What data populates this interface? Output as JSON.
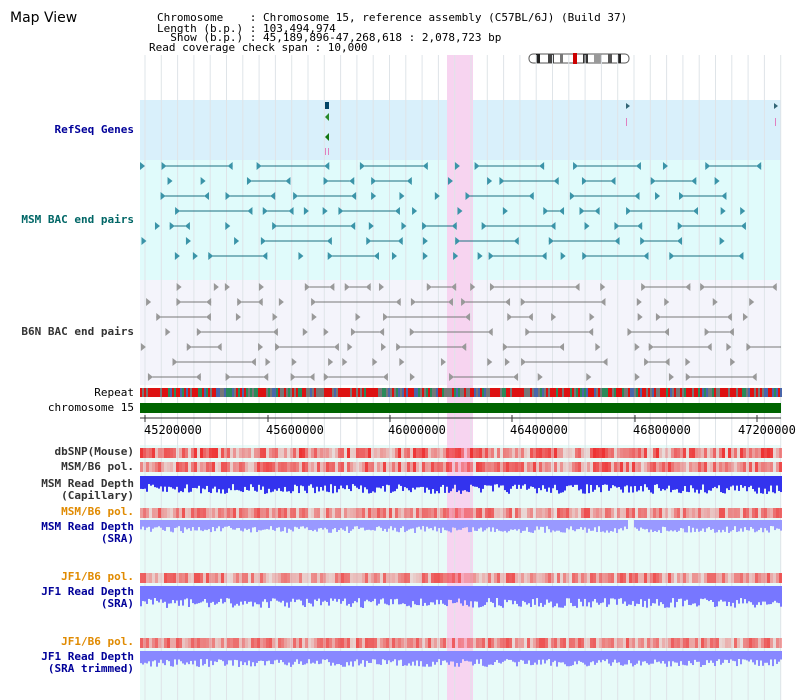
{
  "header": {
    "title": "Map View",
    "info_lines": [
      "Chromosome    : Chromosome 15, reference assembly (C57BL/6J) (Build 37)",
      "Length (b.p.) : 103,494,974",
      "  Show (b.p.) : 45,189,896-47,268,618 : 2,078,723 bp",
      "Read coverage check span : 10,000"
    ]
  },
  "tracks": {
    "refseq": "RefSeq Genes",
    "msm_bac": "MSM BAC end pairs",
    "b6n_bac": "B6N BAC end pairs",
    "repeat": "Repeat",
    "chromosome": "chromosome 15",
    "dbsnp": "dbSNP(Mouse)",
    "msm_b6_pol_1": "MSM/B6 pol.",
    "msm_depth_cap": "MSM Read Depth\n(Capillary)",
    "msm_b6_pol_2": "MSM/B6 pol.",
    "msm_depth_sra": "MSM Read Depth\n(SRA)",
    "jf1_b6_pol_1": "JF1/B6 pol.",
    "jf1_depth_sra": "JF1 Read Depth\n(SRA)",
    "jf1_b6_pol_2": "JF1/B6 pol.",
    "jf1_depth_trim": "JF1 Read Depth\n(SRA trimmed)"
  },
  "axis": {
    "ticks": [
      "45200000",
      "45600000",
      "46000000",
      "46400000",
      "46800000",
      "47200000"
    ]
  },
  "colors": {
    "refseq_bg": "#d9f0fb",
    "msm_bac_bg": "#e0fbfb",
    "b6n_bac_bg": "#f4f4fb",
    "highlight": "#f7d4f0",
    "chrom_green": "#006400",
    "depth_blue": "#3333ee",
    "depth_light": "#9999ff",
    "pol_red": "#ee3333",
    "label_blue": "#000099",
    "label_teal": "#006666",
    "label_gray": "#333333",
    "label_orange": "#e08a00"
  }
}
